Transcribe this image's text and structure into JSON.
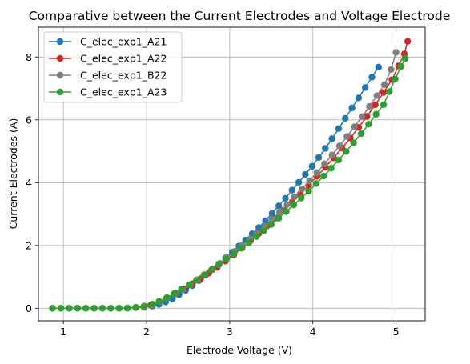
{
  "chart_data": {
    "type": "line",
    "title": "Comparative between the Current Electrodes and Voltage Electrode",
    "xlabel": "Electrode Voltage (V)",
    "ylabel": "Current Electrodes (A)",
    "xlim": [
      0.7,
      5.35
    ],
    "ylim": [
      -0.4,
      8.95
    ],
    "xticks": [
      1,
      2,
      3,
      4,
      5
    ],
    "yticks": [
      0,
      2,
      4,
      6,
      8
    ],
    "grid": true,
    "legend_position": "upper left",
    "series": [
      {
        "name": "C_elec_exp1_A21",
        "color": "#1f77b4",
        "points": [
          [
            0.87,
            0
          ],
          [
            0.97,
            0
          ],
          [
            1.07,
            0
          ],
          [
            1.17,
            0
          ],
          [
            1.27,
            0
          ],
          [
            1.37,
            0
          ],
          [
            1.47,
            0
          ],
          [
            1.57,
            0
          ],
          [
            1.67,
            0
          ],
          [
            1.77,
            0
          ],
          [
            1.87,
            0.02
          ],
          [
            1.97,
            0.03
          ],
          [
            2.07,
            0.07
          ],
          [
            2.15,
            0.12
          ],
          [
            2.23,
            0.2
          ],
          [
            2.31,
            0.3
          ],
          [
            2.39,
            0.43
          ],
          [
            2.47,
            0.57
          ],
          [
            2.55,
            0.72
          ],
          [
            2.63,
            0.88
          ],
          [
            2.71,
            1.05
          ],
          [
            2.79,
            1.23
          ],
          [
            2.87,
            1.41
          ],
          [
            2.95,
            1.6
          ],
          [
            3.03,
            1.79
          ],
          [
            3.11,
            1.98
          ],
          [
            3.19,
            2.17
          ],
          [
            3.27,
            2.37
          ],
          [
            3.35,
            2.57
          ],
          [
            3.43,
            2.79
          ],
          [
            3.51,
            3.02
          ],
          [
            3.59,
            3.26
          ],
          [
            3.67,
            3.5
          ],
          [
            3.75,
            3.76
          ],
          [
            3.83,
            4.01
          ],
          [
            3.91,
            4.26
          ],
          [
            3.99,
            4.52
          ],
          [
            4.07,
            4.8
          ],
          [
            4.15,
            5.09
          ],
          [
            4.23,
            5.4
          ],
          [
            4.31,
            5.72
          ],
          [
            4.39,
            6.05
          ],
          [
            4.47,
            6.38
          ],
          [
            4.55,
            6.7
          ],
          [
            4.63,
            7.03
          ],
          [
            4.71,
            7.36
          ],
          [
            4.79,
            7.68
          ]
        ]
      },
      {
        "name": "C_elec_exp1_A22",
        "color": "#d62728",
        "points": [
          [
            0.87,
            0
          ],
          [
            0.97,
            0
          ],
          [
            1.07,
            0
          ],
          [
            1.17,
            0
          ],
          [
            1.27,
            0
          ],
          [
            1.37,
            0
          ],
          [
            1.47,
            0
          ],
          [
            1.57,
            0
          ],
          [
            1.67,
            0
          ],
          [
            1.77,
            0
          ],
          [
            1.87,
            0.02
          ],
          [
            1.97,
            0.04
          ],
          [
            2.05,
            0.1
          ],
          [
            2.15,
            0.2
          ],
          [
            2.25,
            0.33
          ],
          [
            2.35,
            0.47
          ],
          [
            2.45,
            0.62
          ],
          [
            2.55,
            0.78
          ],
          [
            2.65,
            0.94
          ],
          [
            2.75,
            1.12
          ],
          [
            2.85,
            1.3
          ],
          [
            2.95,
            1.5
          ],
          [
            3.05,
            1.7
          ],
          [
            3.15,
            1.92
          ],
          [
            3.25,
            2.15
          ],
          [
            3.35,
            2.38
          ],
          [
            3.45,
            2.62
          ],
          [
            3.55,
            2.87
          ],
          [
            3.65,
            3.12
          ],
          [
            3.75,
            3.38
          ],
          [
            3.85,
            3.65
          ],
          [
            3.95,
            3.92
          ],
          [
            4.05,
            4.2
          ],
          [
            4.15,
            4.49
          ],
          [
            4.25,
            4.79
          ],
          [
            4.35,
            5.1
          ],
          [
            4.45,
            5.42
          ],
          [
            4.55,
            5.76
          ],
          [
            4.65,
            6.11
          ],
          [
            4.75,
            6.48
          ],
          [
            4.85,
            6.87
          ],
          [
            4.95,
            7.28
          ],
          [
            5.03,
            7.72
          ],
          [
            5.1,
            8.1
          ],
          [
            5.14,
            8.5
          ]
        ]
      },
      {
        "name": "C_elec_exp1_B22",
        "color": "#7f7f7f",
        "points": [
          [
            0.87,
            0
          ],
          [
            0.97,
            0
          ],
          [
            1.07,
            0
          ],
          [
            1.17,
            0
          ],
          [
            1.27,
            0
          ],
          [
            1.37,
            0
          ],
          [
            1.47,
            0
          ],
          [
            1.57,
            0
          ],
          [
            1.67,
            0
          ],
          [
            1.77,
            0
          ],
          [
            1.87,
            0.02
          ],
          [
            1.97,
            0.04
          ],
          [
            2.07,
            0.1
          ],
          [
            2.16,
            0.2
          ],
          [
            2.25,
            0.32
          ],
          [
            2.34,
            0.45
          ],
          [
            2.43,
            0.59
          ],
          [
            2.52,
            0.74
          ],
          [
            2.61,
            0.9
          ],
          [
            2.7,
            1.07
          ],
          [
            2.79,
            1.25
          ],
          [
            2.88,
            1.43
          ],
          [
            2.97,
            1.62
          ],
          [
            3.06,
            1.81
          ],
          [
            3.15,
            2
          ],
          [
            3.24,
            2.2
          ],
          [
            3.33,
            2.4
          ],
          [
            3.42,
            2.61
          ],
          [
            3.51,
            2.83
          ],
          [
            3.6,
            3.06
          ],
          [
            3.69,
            3.3
          ],
          [
            3.78,
            3.55
          ],
          [
            3.87,
            3.8
          ],
          [
            3.96,
            4.06
          ],
          [
            4.05,
            4.32
          ],
          [
            4.14,
            4.6
          ],
          [
            4.23,
            4.88
          ],
          [
            4.32,
            5.17
          ],
          [
            4.41,
            5.47
          ],
          [
            4.5,
            5.78
          ],
          [
            4.59,
            6.1
          ],
          [
            4.68,
            6.43
          ],
          [
            4.77,
            6.77
          ],
          [
            4.86,
            7.12
          ],
          [
            4.94,
            7.6
          ],
          [
            5.0,
            8.15
          ]
        ]
      },
      {
        "name": "C_elec_exp1_A23",
        "color": "#2ca02c",
        "points": [
          [
            0.87,
            0
          ],
          [
            0.97,
            0
          ],
          [
            1.07,
            0
          ],
          [
            1.17,
            0
          ],
          [
            1.27,
            0
          ],
          [
            1.37,
            0
          ],
          [
            1.47,
            0
          ],
          [
            1.57,
            0
          ],
          [
            1.67,
            0
          ],
          [
            1.77,
            0.01
          ],
          [
            1.87,
            0.03
          ],
          [
            1.97,
            0.07
          ],
          [
            2.07,
            0.13
          ],
          [
            2.15,
            0.22
          ],
          [
            2.24,
            0.33
          ],
          [
            2.33,
            0.46
          ],
          [
            2.42,
            0.6
          ],
          [
            2.51,
            0.75
          ],
          [
            2.6,
            0.9
          ],
          [
            2.69,
            1.06
          ],
          [
            2.78,
            1.22
          ],
          [
            2.87,
            1.39
          ],
          [
            2.96,
            1.56
          ],
          [
            3.05,
            1.73
          ],
          [
            3.14,
            1.91
          ],
          [
            3.23,
            2.09
          ],
          [
            3.32,
            2.28
          ],
          [
            3.41,
            2.47
          ],
          [
            3.5,
            2.67
          ],
          [
            3.59,
            2.87
          ],
          [
            3.68,
            3.08
          ],
          [
            3.77,
            3.29
          ],
          [
            3.86,
            3.51
          ],
          [
            3.95,
            3.73
          ],
          [
            4.04,
            3.97
          ],
          [
            4.13,
            4.21
          ],
          [
            4.22,
            4.46
          ],
          [
            4.31,
            4.72
          ],
          [
            4.4,
            4.99
          ],
          [
            4.49,
            5.27
          ],
          [
            4.58,
            5.56
          ],
          [
            4.67,
            5.86
          ],
          [
            4.76,
            6.18
          ],
          [
            4.85,
            6.48
          ],
          [
            4.92,
            6.9
          ],
          [
            4.99,
            7.3
          ],
          [
            5.06,
            7.7
          ],
          [
            5.11,
            7.95
          ]
        ]
      }
    ]
  }
}
